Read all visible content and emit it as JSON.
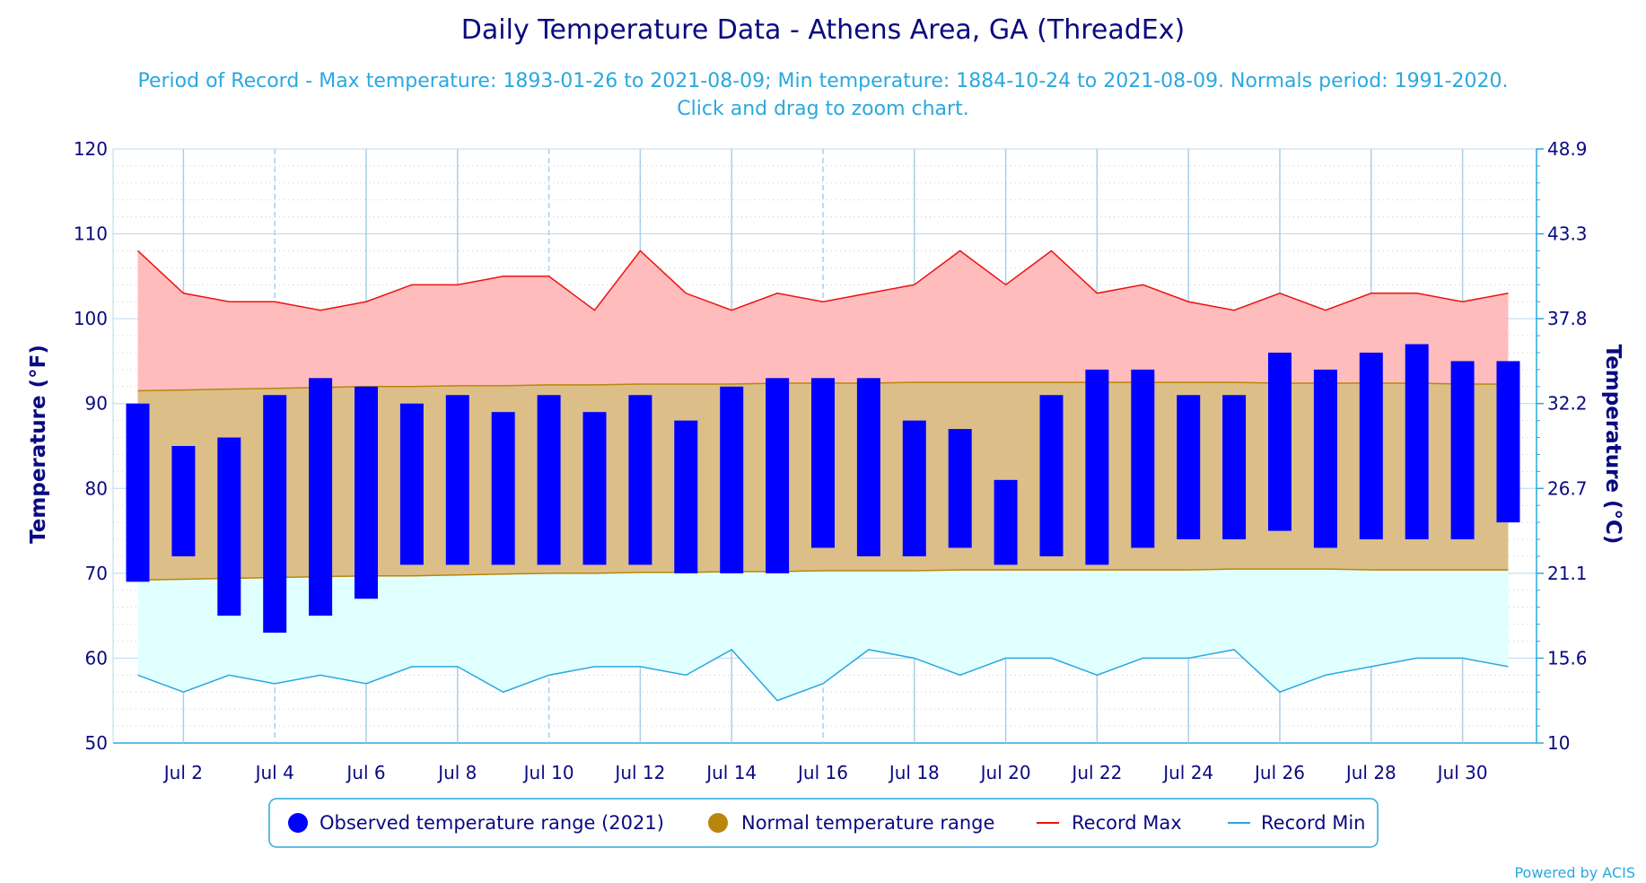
{
  "chart_data": {
    "type": "bar",
    "title": "Daily Temperature Data - Athens Area, GA (ThreadEx)",
    "subtitle_line1": "Period of Record - Max temperature: 1893-01-26 to 2021-08-09; Min temperature: 1884-10-24 to 2021-08-09. Normals period: 1991-2020.",
    "subtitle_line2": "Click and drag to zoom chart.",
    "ylabel_left": "Temperature (°F)",
    "ylabel_right": "Temperature (°C)",
    "ylim": [
      50,
      120
    ],
    "y_ticks_left": [
      "50",
      "60",
      "70",
      "80",
      "90",
      "100",
      "110",
      "120"
    ],
    "y_ticks_right": [
      "10",
      "15.6",
      "21.1",
      "26.7",
      "32.2",
      "37.8",
      "43.3",
      "48.9"
    ],
    "x_tick_labels": [
      "Jul 2",
      "Jul 4",
      "Jul 6",
      "Jul 8",
      "Jul 10",
      "Jul 12",
      "Jul 14",
      "Jul 16",
      "Jul 18",
      "Jul 20",
      "Jul 22",
      "Jul 24",
      "Jul 26",
      "Jul 28",
      "Jul 30"
    ],
    "x_tick_days": [
      2,
      4,
      6,
      8,
      10,
      12,
      14,
      16,
      18,
      20,
      22,
      24,
      26,
      28,
      30
    ],
    "days": [
      1,
      2,
      3,
      4,
      5,
      6,
      7,
      8,
      9,
      10,
      11,
      12,
      13,
      14,
      15,
      16,
      17,
      18,
      19,
      20,
      21,
      22,
      23,
      24,
      25,
      26,
      27,
      28,
      29,
      30,
      31
    ],
    "series": [
      {
        "name": "Observed temperature range (2021)",
        "color": "#0000ff",
        "high": [
          90,
          85,
          86,
          91,
          93,
          92,
          90,
          91,
          89,
          91,
          89,
          91,
          88,
          92,
          93,
          93,
          93,
          88,
          87,
          81,
          91,
          94,
          94,
          91,
          91,
          96,
          94,
          96,
          97,
          95,
          95
        ],
        "low": [
          69,
          72,
          65,
          63,
          65,
          67,
          71,
          71,
          71,
          71,
          71,
          71,
          70,
          70,
          70,
          73,
          72,
          72,
          73,
          71,
          72,
          71,
          73,
          74,
          74,
          75,
          73,
          74,
          74,
          74,
          76
        ]
      },
      {
        "name": "Normal temperature range",
        "color": "#b8860b",
        "high": [
          91.5,
          91.6,
          91.7,
          91.8,
          91.9,
          92.0,
          92.0,
          92.1,
          92.1,
          92.2,
          92.2,
          92.3,
          92.3,
          92.3,
          92.4,
          92.4,
          92.4,
          92.5,
          92.5,
          92.5,
          92.5,
          92.5,
          92.5,
          92.5,
          92.5,
          92.4,
          92.4,
          92.4,
          92.4,
          92.3,
          92.3
        ],
        "low": [
          69.2,
          69.3,
          69.4,
          69.5,
          69.6,
          69.7,
          69.7,
          69.8,
          69.9,
          70.0,
          70.0,
          70.1,
          70.1,
          70.2,
          70.2,
          70.3,
          70.3,
          70.3,
          70.4,
          70.4,
          70.4,
          70.4,
          70.4,
          70.4,
          70.5,
          70.5,
          70.5,
          70.4,
          70.4,
          70.4,
          70.4
        ]
      },
      {
        "name": "Record Max",
        "color": "#ee1111",
        "values": [
          108,
          103,
          102,
          102,
          101,
          102,
          104,
          104,
          105,
          105,
          101,
          108,
          103,
          101,
          103,
          102,
          103,
          104,
          108,
          104,
          108,
          103,
          104,
          102,
          101,
          103,
          101,
          103,
          103,
          102,
          103
        ]
      },
      {
        "name": "Record Min",
        "color": "#29a8e0",
        "values": [
          58,
          56,
          58,
          57,
          58,
          57,
          59,
          59,
          56,
          58,
          59,
          59,
          58,
          61,
          55,
          57,
          61,
          60,
          58,
          60,
          60,
          58,
          60,
          60,
          61,
          56,
          58,
          59,
          60,
          60,
          59
        ]
      }
    ],
    "grid": true,
    "legend_position": "bottom-center"
  },
  "credit": "Powered by ACIS"
}
